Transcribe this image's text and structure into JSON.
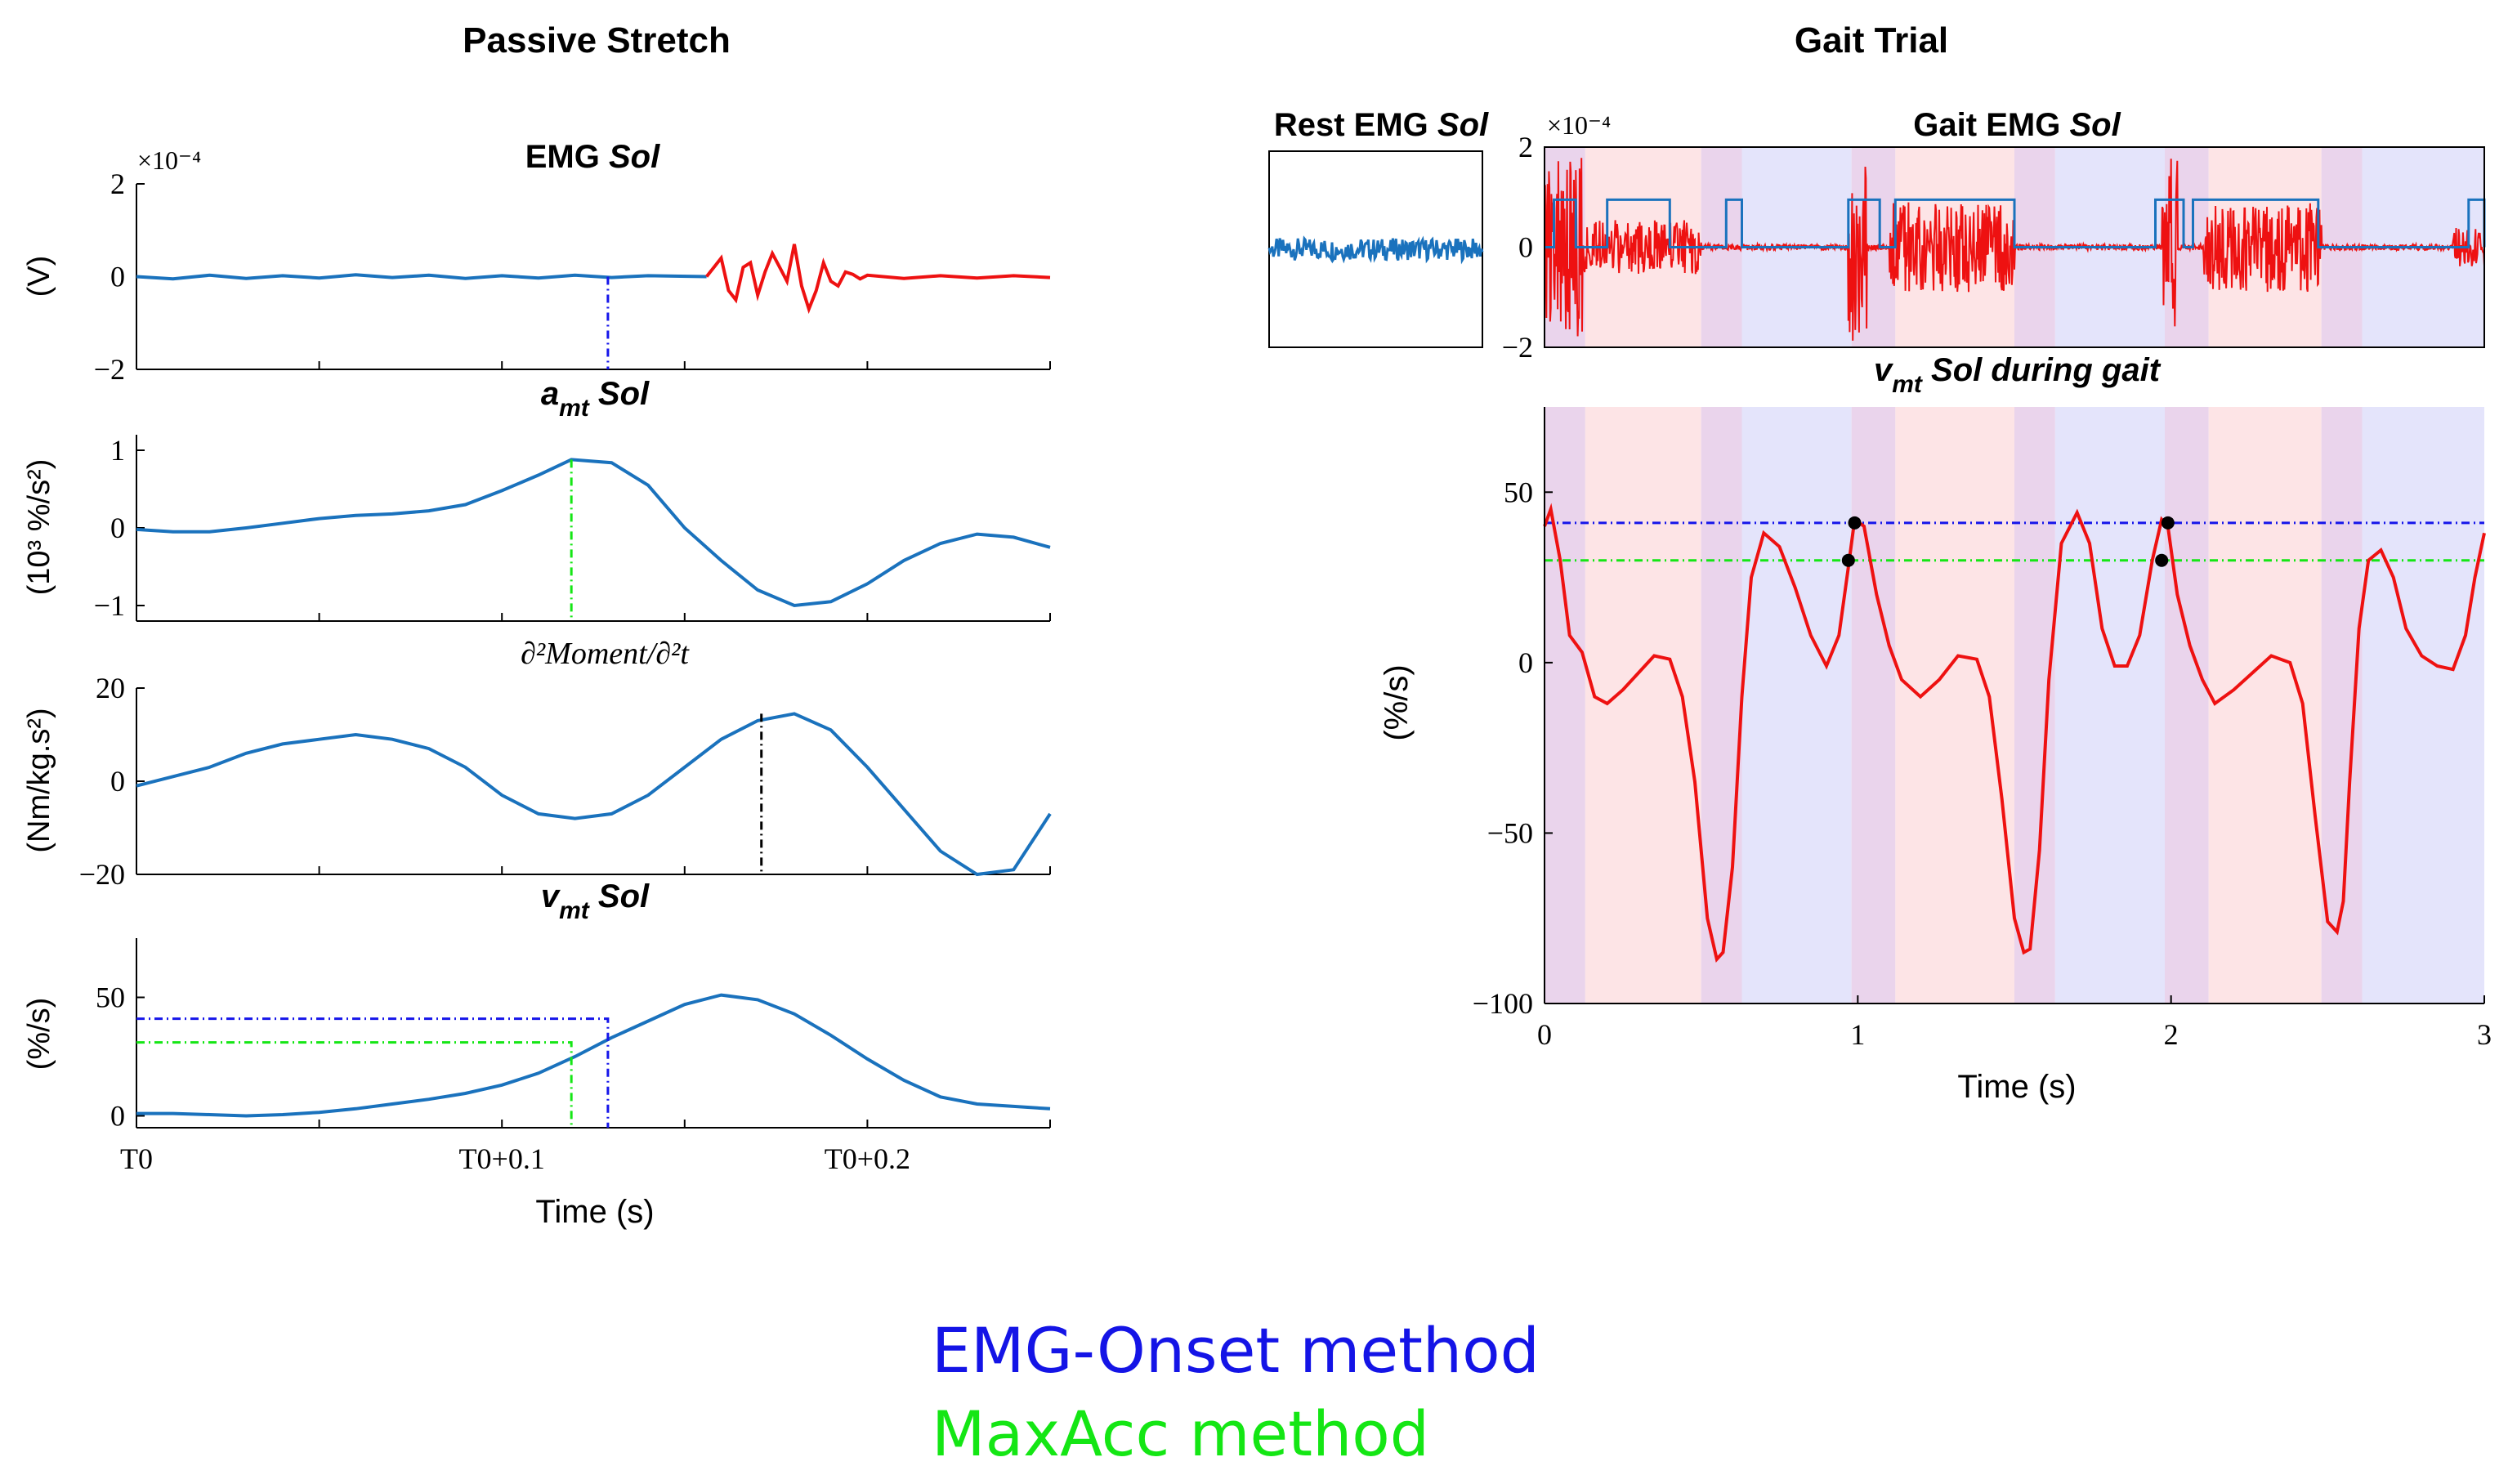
{
  "titles": {
    "left": "Passive Stretch",
    "right": "Gait Trial"
  },
  "legend": [
    {
      "label": "EMG-Onset method",
      "color": "#1414e6"
    },
    {
      "label": "MaxAcc method",
      "color": "#14e614"
    }
  ],
  "colors": {
    "curve": "#1a72bd",
    "emg_red": "#ee1111",
    "onset_blue": "#1515ea",
    "maxacc_green": "#15e615",
    "moment_black": "#000000",
    "phase_red": "#fde4e6",
    "phase_purple": "#ead4ec",
    "phase_blue": "#e4e4fb"
  },
  "chart_data": [
    {
      "id": "emg",
      "type": "line",
      "title_main": "EMG",
      "title_ital": "Sol",
      "exponent": "×10⁻⁴",
      "ylabel": "(V)",
      "ylim": [
        -2,
        2
      ],
      "yticks": [
        "2",
        "0",
        "−2"
      ],
      "xlim": [
        0,
        0.25
      ],
      "onset_t": 0.129,
      "series": [
        {
          "name": "rest",
          "color": "#1a72bd",
          "x": [
            0,
            0.01,
            0.02,
            0.03,
            0.04,
            0.05,
            0.06,
            0.07,
            0.08,
            0.09,
            0.1,
            0.11,
            0.12,
            0.13,
            0.14,
            0.156
          ],
          "y": [
            0,
            -0.05,
            0.03,
            -0.04,
            0.02,
            -0.03,
            0.04,
            -0.02,
            0.03,
            -0.04,
            0.02,
            -0.03,
            0.03,
            -0.02,
            0.02,
            0
          ]
        },
        {
          "name": "active",
          "color": "#ee1111",
          "x": [
            0.156,
            0.158,
            0.16,
            0.162,
            0.164,
            0.166,
            0.168,
            0.17,
            0.172,
            0.174,
            0.176,
            0.178,
            0.18,
            0.182,
            0.184,
            0.186,
            0.188,
            0.19,
            0.192,
            0.194,
            0.196,
            0.198,
            0.2,
            0.21,
            0.22,
            0.23,
            0.24,
            0.25
          ],
          "y": [
            0,
            0.2,
            0.4,
            -0.3,
            -0.5,
            0.2,
            0.3,
            -0.4,
            0.1,
            0.5,
            0.2,
            -0.1,
            0.7,
            -0.2,
            -0.7,
            -0.3,
            0.3,
            -0.1,
            -0.2,
            0.1,
            0.05,
            -0.05,
            0.03,
            -0.04,
            0.02,
            -0.03,
            0.02,
            -0.02
          ]
        }
      ]
    },
    {
      "id": "amt",
      "type": "line",
      "title_main": "a",
      "title_sub": "mt",
      "title_ital": "Sol",
      "ylabel": "(10³ %/s²)",
      "ylim": [
        -1.2,
        1.2
      ],
      "yticks": [
        "1",
        "0",
        "−1"
      ],
      "xlim": [
        0,
        0.25
      ],
      "x": [
        0,
        0.01,
        0.02,
        0.03,
        0.04,
        0.05,
        0.06,
        0.07,
        0.08,
        0.09,
        0.1,
        0.11,
        0.119,
        0.13,
        0.14,
        0.15,
        0.16,
        0.17,
        0.18,
        0.19,
        0.2,
        0.21,
        0.22,
        0.23,
        0.24,
        0.25
      ],
      "y": [
        -0.02,
        -0.05,
        -0.05,
        0.0,
        0.06,
        0.12,
        0.16,
        0.18,
        0.22,
        0.3,
        0.48,
        0.68,
        0.88,
        0.84,
        0.55,
        0.0,
        -0.42,
        -0.8,
        -1.0,
        -0.95,
        -0.72,
        -0.42,
        -0.2,
        -0.08,
        -0.12,
        -0.25
      ],
      "maxacc_t": 0.119
    },
    {
      "id": "moment",
      "type": "line",
      "title_math": "∂²Moment/∂²t",
      "ylabel": "(Nm/kg.s²)",
      "ylim": [
        -20,
        20
      ],
      "yticks": [
        "20",
        "0",
        "−20"
      ],
      "xlim": [
        0,
        0.25
      ],
      "x": [
        0,
        0.01,
        0.02,
        0.03,
        0.04,
        0.05,
        0.06,
        0.07,
        0.08,
        0.09,
        0.1,
        0.11,
        0.12,
        0.13,
        0.14,
        0.15,
        0.16,
        0.17,
        0.18,
        0.19,
        0.2,
        0.21,
        0.22,
        0.23,
        0.24,
        0.25
      ],
      "y": [
        -1,
        1,
        3,
        6,
        8,
        9,
        10,
        9,
        7,
        3,
        -3,
        -7,
        -8,
        -7,
        -3,
        3,
        9,
        13,
        14.5,
        11,
        3,
        -6,
        -15,
        -20,
        -19,
        -7
      ],
      "peak_t": 0.171
    },
    {
      "id": "vmt",
      "type": "line",
      "title_main": "v",
      "title_sub": "mt",
      "title_ital": "Sol",
      "ylabel": "(%/s)",
      "ylim": [
        -5,
        75
      ],
      "yticks": [
        "50",
        "0"
      ],
      "ytick_values": [
        50,
        0
      ],
      "xlim": [
        0,
        0.25
      ],
      "xticks": [
        "T0",
        "T0+0.1",
        "T0+0.2"
      ],
      "xtick_values": [
        0,
        0.1,
        0.2
      ],
      "xlabel": "Time (s)",
      "x": [
        0,
        0.01,
        0.02,
        0.03,
        0.04,
        0.05,
        0.06,
        0.07,
        0.08,
        0.09,
        0.1,
        0.11,
        0.12,
        0.13,
        0.14,
        0.15,
        0.16,
        0.17,
        0.18,
        0.19,
        0.2,
        0.21,
        0.22,
        0.23,
        0.24,
        0.25
      ],
      "y": [
        1,
        1,
        0.5,
        0,
        0.5,
        1.5,
        3,
        5,
        7,
        9.5,
        13,
        18,
        25,
        33,
        40,
        47,
        51,
        49,
        43,
        34,
        24,
        15,
        8,
        5,
        4,
        3
      ],
      "onset_t": 0.129,
      "onset_v": 41,
      "maxacc_t": 0.119,
      "maxacc_v": 31
    },
    {
      "id": "rest_emg",
      "type": "line",
      "title_main": "Rest EMG",
      "title_ital": "Sol",
      "ylim": [
        -2,
        2
      ],
      "xlim": [
        0,
        1
      ]
    },
    {
      "id": "gait_emg",
      "type": "line",
      "title_main": "Gait EMG",
      "title_ital": "Sol",
      "exponent": "×10⁻⁴",
      "ylim": [
        -2,
        2
      ],
      "yticks": [
        "2",
        "0",
        "−2"
      ],
      "ytick_values": [
        2,
        0,
        -2
      ],
      "xlim": [
        0,
        3
      ],
      "on_off_intervals": [
        [
          0.03,
          0.1
        ],
        [
          0.2,
          0.4
        ],
        [
          0.58,
          0.63
        ],
        [
          0.97,
          1.07
        ],
        [
          1.12,
          1.5
        ],
        [
          1.95,
          2.04
        ],
        [
          2.07,
          2.47
        ],
        [
          2.95,
          3.0
        ]
      ],
      "bursts": [
        {
          "t0": 0.0,
          "t1": 0.12,
          "amp": 1.8
        },
        {
          "t0": 0.12,
          "t1": 0.5,
          "amp": 0.55
        },
        {
          "t0": 0.97,
          "t1": 1.03,
          "amp": 1.9
        },
        {
          "t0": 1.1,
          "t1": 1.5,
          "amp": 0.9
        },
        {
          "t0": 1.97,
          "t1": 2.02,
          "amp": 1.8
        },
        {
          "t0": 2.1,
          "t1": 2.48,
          "amp": 0.9
        },
        {
          "t0": 2.9,
          "t1": 3.0,
          "amp": 0.4
        }
      ]
    },
    {
      "id": "vmt_gait",
      "type": "line",
      "title_main": "v",
      "title_sub": "mt",
      "title_ital": "Sol during gait",
      "ylabel": "(%/s)",
      "ylim": [
        -100,
        75
      ],
      "yticks": [
        "50",
        "0",
        "−50",
        "−100"
      ],
      "ytick_values": [
        50,
        0,
        -50,
        -100
      ],
      "xlim": [
        0,
        3
      ],
      "xticks": [
        "0",
        "1",
        "2",
        "3"
      ],
      "xtick_values": [
        0,
        1,
        2,
        3
      ],
      "xlabel": "Time (s)",
      "onset_level": 41,
      "maxacc_level": 30,
      "markers": [
        [
          0.99,
          41
        ],
        [
          0.97,
          30
        ],
        [
          1.99,
          41
        ],
        [
          1.97,
          30
        ]
      ],
      "phases": [
        [
          "purple",
          0,
          0.13
        ],
        [
          "red",
          0.13,
          0.5
        ],
        [
          "purple",
          0.5,
          0.63
        ],
        [
          "blue",
          0.63,
          0.98
        ],
        [
          "purple",
          0.98,
          1.12
        ],
        [
          "red",
          1.12,
          1.5
        ],
        [
          "purple",
          1.5,
          1.63
        ],
        [
          "blue",
          1.63,
          1.98
        ],
        [
          "purple",
          1.98,
          2.12
        ],
        [
          "red",
          2.12,
          2.48
        ],
        [
          "purple",
          2.48,
          2.61
        ],
        [
          "blue",
          2.61,
          3.0
        ]
      ],
      "x": [
        0,
        0.02,
        0.05,
        0.08,
        0.12,
        0.16,
        0.2,
        0.25,
        0.3,
        0.35,
        0.4,
        0.44,
        0.48,
        0.52,
        0.55,
        0.57,
        0.6,
        0.63,
        0.66,
        0.7,
        0.75,
        0.8,
        0.85,
        0.9,
        0.94,
        0.97,
        0.99,
        1.02,
        1.06,
        1.1,
        1.14,
        1.2,
        1.26,
        1.32,
        1.38,
        1.42,
        1.46,
        1.5,
        1.53,
        1.55,
        1.58,
        1.61,
        1.65,
        1.7,
        1.74,
        1.78,
        1.82,
        1.86,
        1.9,
        1.94,
        1.97,
        1.99,
        2.02,
        2.06,
        2.1,
        2.14,
        2.2,
        2.26,
        2.32,
        2.38,
        2.42,
        2.46,
        2.5,
        2.53,
        2.55,
        2.57,
        2.6,
        2.63,
        2.67,
        2.71,
        2.75,
        2.8,
        2.85,
        2.9,
        2.94,
        2.97,
        3.0
      ],
      "y": [
        40,
        45,
        30,
        8,
        3,
        -10,
        -12,
        -8,
        -3,
        2,
        1,
        -10,
        -35,
        -75,
        -87,
        -85,
        -60,
        -10,
        25,
        38,
        34,
        22,
        8,
        -1,
        8,
        28,
        42,
        40,
        20,
        5,
        -5,
        -10,
        -5,
        2,
        1,
        -10,
        -40,
        -75,
        -85,
        -84,
        -55,
        -5,
        35,
        44,
        35,
        10,
        -1,
        -1,
        8,
        30,
        42,
        40,
        20,
        5,
        -5,
        -12,
        -8,
        -3,
        2,
        0,
        -12,
        -45,
        -76,
        -79,
        -70,
        -35,
        10,
        30,
        33,
        25,
        10,
        2,
        -1,
        -2,
        8,
        25,
        38
      ]
    }
  ]
}
